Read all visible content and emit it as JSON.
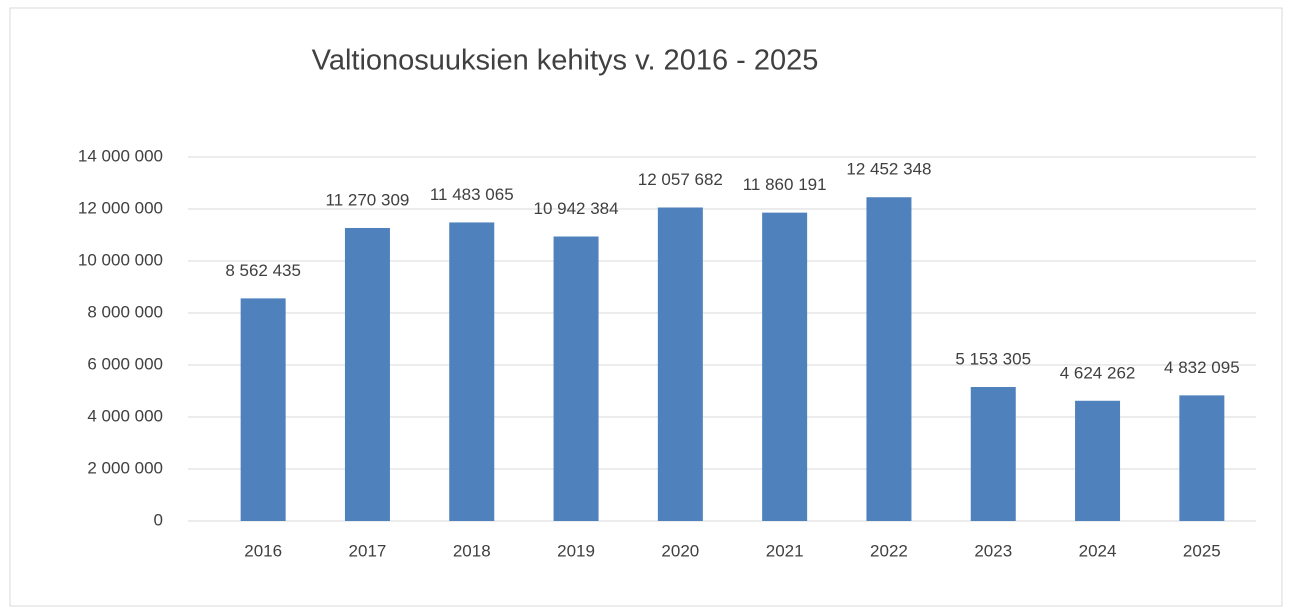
{
  "chart_data": {
    "type": "bar",
    "title": "Valtionosuuksien kehitys v. 2016 - 2025",
    "categories": [
      "2016",
      "2017",
      "2018",
      "2019",
      "2020",
      "2021",
      "2022",
      "2023",
      "2024",
      "2025"
    ],
    "values": [
      8562435,
      11270309,
      11483065,
      10942384,
      12057682,
      11860191,
      12452348,
      5153305,
      4624262,
      4832095
    ],
    "value_labels": [
      "8 562 435",
      "11 270 309",
      "11 483 065",
      "10 942 384",
      "12 057 682",
      "11 860 191",
      "12 452 348",
      "5 153 305",
      "4 624 262",
      "4 832 095"
    ],
    "color": "#4f81bd",
    "ylim": [
      0,
      14000000
    ],
    "yticks": [
      0,
      {
        "value": 2000000,
        "label": "2 000 000"
      },
      {
        "value": 4000000,
        "label": "4 000 000"
      },
      {
        "value": 6000000,
        "label": "6 000 000"
      },
      {
        "value": 8000000,
        "label": "8 000 000"
      },
      {
        "value": 10000000,
        "label": "10 000 000"
      },
      {
        "value": 12000000,
        "label": "12 000 000"
      },
      {
        "value": 14000000,
        "label": "14 000 000"
      }
    ],
    "grid": true
  }
}
